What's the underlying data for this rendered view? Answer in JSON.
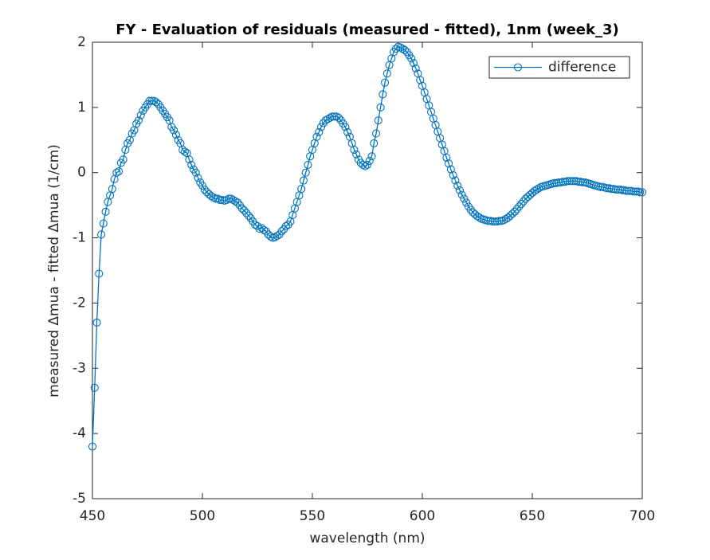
{
  "chart_data": {
    "type": "line",
    "title": "FY - Evaluation of residuals (measured - fitted), 1nm (week_3)",
    "xlabel": "wavelength (nm)",
    "ylabel": "measured Δmua - fitted Δmua (1/cm)",
    "x": [
      450,
      451,
      452,
      453,
      454,
      455,
      456,
      457,
      458,
      459,
      460,
      461,
      462,
      463,
      464,
      465,
      466,
      467,
      468,
      469,
      470,
      471,
      472,
      473,
      474,
      475,
      476,
      477,
      478,
      479,
      480,
      481,
      482,
      483,
      484,
      485,
      486,
      487,
      488,
      489,
      490,
      491,
      492,
      493,
      494,
      495,
      496,
      497,
      498,
      499,
      500,
      501,
      502,
      503,
      504,
      505,
      506,
      507,
      508,
      509,
      510,
      511,
      512,
      513,
      514,
      515,
      516,
      517,
      518,
      519,
      520,
      521,
      522,
      523,
      524,
      525,
      526,
      527,
      528,
      529,
      530,
      531,
      532,
      533,
      534,
      535,
      536,
      537,
      538,
      539,
      540,
      541,
      542,
      543,
      544,
      545,
      546,
      547,
      548,
      549,
      550,
      551,
      552,
      553,
      554,
      555,
      556,
      557,
      558,
      559,
      560,
      561,
      562,
      563,
      564,
      565,
      566,
      567,
      568,
      569,
      570,
      571,
      572,
      573,
      574,
      575,
      576,
      577,
      578,
      579,
      580,
      581,
      582,
      583,
      584,
      585,
      586,
      587,
      588,
      589,
      590,
      591,
      592,
      593,
      594,
      595,
      596,
      597,
      598,
      599,
      600,
      601,
      602,
      603,
      604,
      605,
      606,
      607,
      608,
      609,
      610,
      611,
      612,
      613,
      614,
      615,
      616,
      617,
      618,
      619,
      620,
      621,
      622,
      623,
      624,
      625,
      626,
      627,
      628,
      629,
      630,
      631,
      632,
      633,
      634,
      635,
      636,
      637,
      638,
      639,
      640,
      641,
      642,
      643,
      644,
      645,
      646,
      647,
      648,
      649,
      650,
      651,
      652,
      653,
      654,
      655,
      656,
      657,
      658,
      659,
      660,
      661,
      662,
      663,
      664,
      665,
      666,
      667,
      668,
      669,
      670,
      671,
      672,
      673,
      674,
      675,
      676,
      677,
      678,
      679,
      680,
      681,
      682,
      683,
      684,
      685,
      686,
      687,
      688,
      689,
      690,
      691,
      692,
      693,
      694,
      695,
      696,
      697,
      698,
      699,
      700
    ],
    "series": [
      {
        "name": "difference",
        "color": "#0072bd",
        "marker": "o",
        "values": [
          -4.2,
          -3.3,
          -2.3,
          -1.55,
          -0.95,
          -0.78,
          -0.6,
          -0.45,
          -0.35,
          -0.25,
          -0.1,
          0.0,
          0.02,
          0.15,
          0.2,
          0.35,
          0.45,
          0.5,
          0.6,
          0.65,
          0.75,
          0.8,
          0.88,
          0.95,
          1.0,
          1.05,
          1.1,
          1.1,
          1.1,
          1.08,
          1.05,
          1.0,
          0.95,
          0.9,
          0.85,
          0.8,
          0.7,
          0.65,
          0.58,
          0.5,
          0.45,
          0.35,
          0.32,
          0.3,
          0.2,
          0.12,
          0.05,
          0.0,
          -0.08,
          -0.15,
          -0.2,
          -0.26,
          -0.3,
          -0.33,
          -0.36,
          -0.38,
          -0.4,
          -0.4,
          -0.42,
          -0.42,
          -0.43,
          -0.42,
          -0.4,
          -0.4,
          -0.42,
          -0.44,
          -0.46,
          -0.5,
          -0.55,
          -0.58,
          -0.62,
          -0.66,
          -0.7,
          -0.75,
          -0.8,
          -0.82,
          -0.86,
          -0.85,
          -0.88,
          -0.9,
          -0.95,
          -0.98,
          -1.0,
          -0.99,
          -0.97,
          -0.95,
          -0.9,
          -0.87,
          -0.82,
          -0.8,
          -0.75,
          -0.65,
          -0.55,
          -0.45,
          -0.35,
          -0.25,
          -0.12,
          0.0,
          0.12,
          0.25,
          0.35,
          0.45,
          0.55,
          0.62,
          0.7,
          0.76,
          0.8,
          0.82,
          0.84,
          0.86,
          0.86,
          0.86,
          0.84,
          0.8,
          0.75,
          0.7,
          0.62,
          0.55,
          0.45,
          0.35,
          0.28,
          0.2,
          0.15,
          0.12,
          0.1,
          0.12,
          0.18,
          0.25,
          0.45,
          0.6,
          0.8,
          1.0,
          1.2,
          1.38,
          1.52,
          1.65,
          1.75,
          1.85,
          1.9,
          1.93,
          1.92,
          1.9,
          1.88,
          1.85,
          1.8,
          1.75,
          1.68,
          1.6,
          1.52,
          1.42,
          1.33,
          1.23,
          1.13,
          1.03,
          0.93,
          0.83,
          0.73,
          0.63,
          0.53,
          0.43,
          0.33,
          0.23,
          0.14,
          0.05,
          -0.04,
          -0.12,
          -0.2,
          -0.27,
          -0.34,
          -0.4,
          -0.46,
          -0.52,
          -0.57,
          -0.61,
          -0.64,
          -0.67,
          -0.69,
          -0.71,
          -0.72,
          -0.73,
          -0.74,
          -0.74,
          -0.75,
          -0.75,
          -0.75,
          -0.74,
          -0.74,
          -0.73,
          -0.71,
          -0.69,
          -0.66,
          -0.63,
          -0.6,
          -0.56,
          -0.52,
          -0.48,
          -0.44,
          -0.4,
          -0.37,
          -0.34,
          -0.31,
          -0.28,
          -0.26,
          -0.24,
          -0.22,
          -0.21,
          -0.2,
          -0.19,
          -0.18,
          -0.17,
          -0.16,
          -0.16,
          -0.15,
          -0.15,
          -0.14,
          -0.14,
          -0.13,
          -0.13,
          -0.13,
          -0.13,
          -0.13,
          -0.14,
          -0.14,
          -0.15,
          -0.15,
          -0.16,
          -0.17,
          -0.18,
          -0.19,
          -0.2,
          -0.21,
          -0.22,
          -0.22,
          -0.23,
          -0.24,
          -0.24,
          -0.25,
          -0.25,
          -0.26,
          -0.26,
          -0.26,
          -0.27,
          -0.27,
          -0.28,
          -0.28,
          -0.28,
          -0.29,
          -0.29,
          -0.29,
          -0.3,
          -0.3
        ]
      }
    ],
    "xlim": [
      450,
      700
    ],
    "ylim": [
      -5,
      2
    ],
    "xticks": [
      450,
      500,
      550,
      600,
      650,
      700
    ],
    "yticks": [
      -5,
      -4,
      -3,
      -2,
      -1,
      0,
      1,
      2
    ],
    "grid": false,
    "legend": "northeast"
  }
}
